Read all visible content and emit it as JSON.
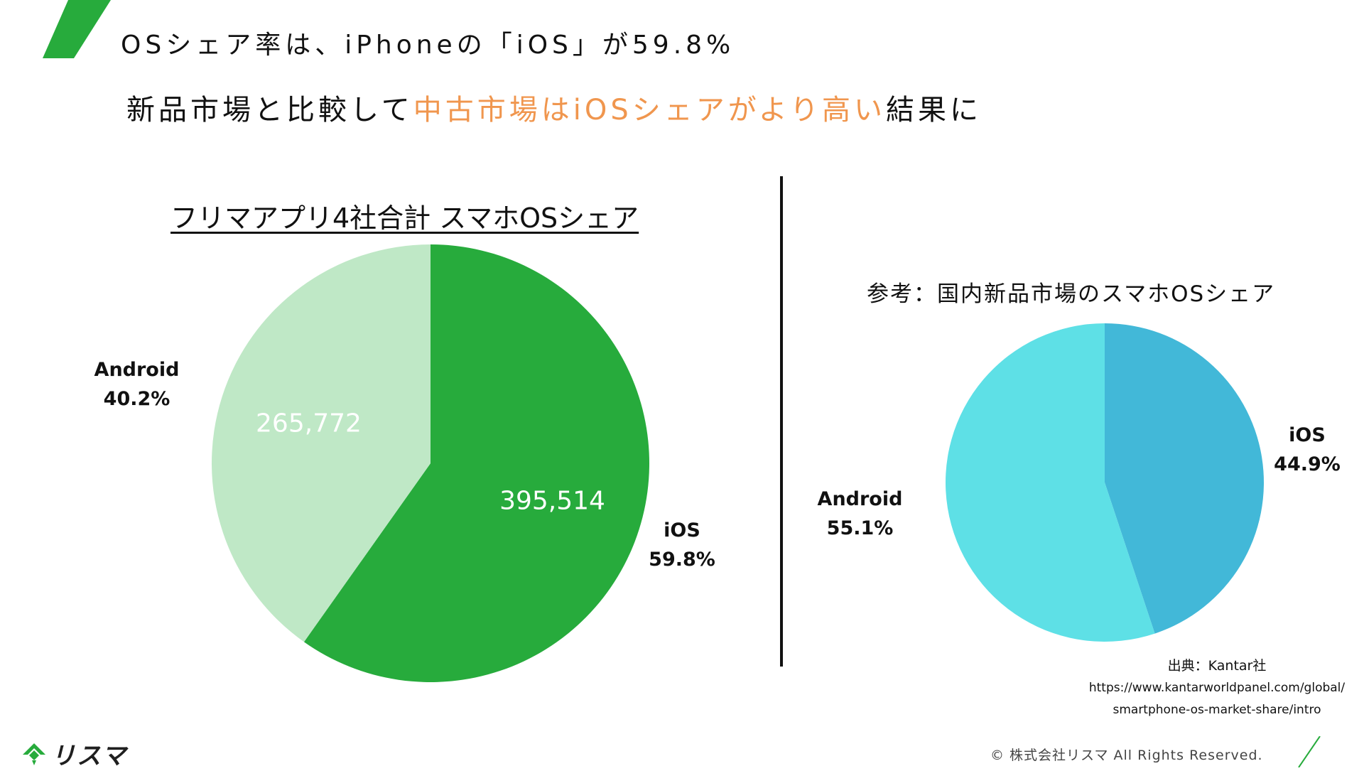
{
  "header": {
    "title": "OSシェア率は、iPhoneの「iOS」が59.8%",
    "subtitle_part1": "新品市場と比較して",
    "subtitle_highlight": "中古市場はiOSシェアがより高い",
    "subtitle_part2": "結果に"
  },
  "colors": {
    "accent_green": "#27ab3c",
    "highlight_orange": "#f0964e"
  },
  "chart_data": [
    {
      "type": "pie",
      "title": "フリマアプリ4社合計 スマホOSシェア",
      "slices": [
        {
          "name": "iOS",
          "value": 395514,
          "value_label": "395,514",
          "percent_label": "59.8%",
          "color": "#27ab3c"
        },
        {
          "name": "Android",
          "value": 265772,
          "value_label": "265,772",
          "percent_label": "40.2%",
          "color": "#bfe8c6"
        }
      ]
    },
    {
      "type": "pie",
      "title": "参考：国内新品市場のスマホOSシェア",
      "slices": [
        {
          "name": "iOS",
          "value": 44.9,
          "percent_label": "44.9%",
          "color": "#42b8d8"
        },
        {
          "name": "Android",
          "value": 55.1,
          "percent_label": "55.1%",
          "color": "#5ee0e6"
        }
      ]
    }
  ],
  "source": {
    "label": "出典：Kantar社",
    "url_line1": "https://www.kantarworldpanel.com/global/",
    "url_line2": "smartphone-os-market-share/intro"
  },
  "footer": {
    "logo_text": "リスマ",
    "copyright": "© 株式会社リスマ All Rights Reserved."
  },
  "icons": {
    "top_decor": "green-slash-icon",
    "logo_mark": "lisma-logo-icon",
    "bottom_decor": "green-line-icon"
  }
}
